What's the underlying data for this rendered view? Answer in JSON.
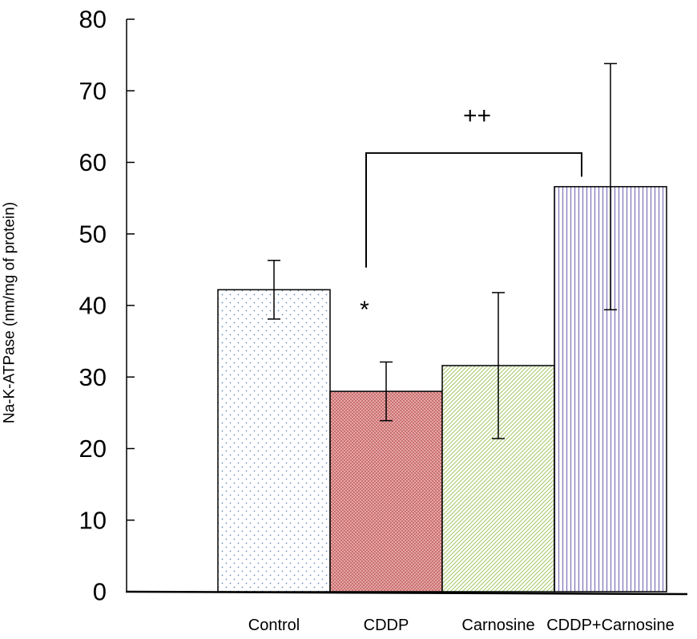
{
  "chart_data": {
    "type": "bar",
    "title": "",
    "xlabel": "",
    "ylabel": "Na-K-ATPase (nm/mg of protein)",
    "ylim": [
      0,
      80
    ],
    "yticks": [
      0,
      10,
      20,
      30,
      40,
      50,
      60,
      70,
      80
    ],
    "ytick_labels": [
      "0",
      "10",
      "20",
      "30",
      "40",
      "50",
      "60",
      "70",
      "80"
    ],
    "categories": [
      "Control",
      "CDDP",
      "Carnosine",
      "CDDP+Carnosine"
    ],
    "values": [
      42.2,
      28.0,
      31.6,
      56.6
    ],
    "errors": [
      4.1,
      4.1,
      10.2,
      17.2
    ],
    "colors": [
      "#6b8fc7",
      "#d98282",
      "#a9c96e",
      "#8a7fbf"
    ],
    "patterns": [
      "dots",
      "crosshatch",
      "diagonal",
      "vertical"
    ],
    "grid": false,
    "legend": "none",
    "annotations": [
      {
        "text": "*",
        "category": "CDDP",
        "y": 40.3
      },
      {
        "text": "++",
        "y": 66.5,
        "bracket": {
          "from": "CDDP",
          "to": "CDDP+Carnosine",
          "y": 61.3,
          "left_drop_to": 45.3,
          "right_drop_to": 58.0
        }
      }
    ]
  }
}
